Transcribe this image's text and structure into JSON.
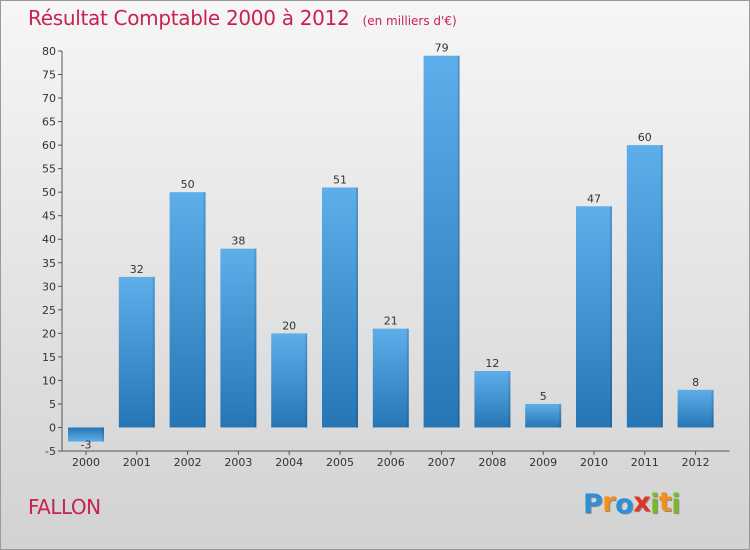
{
  "chart_data": {
    "type": "bar",
    "title": "Résultat Comptable 2000 à 2012",
    "subtitle": "(en milliers d'€)",
    "categories": [
      "2000",
      "2001",
      "2002",
      "2003",
      "2004",
      "2005",
      "2006",
      "2007",
      "2008",
      "2009",
      "2010",
      "2011",
      "2012"
    ],
    "values": [
      -3,
      32,
      50,
      38,
      20,
      51,
      21,
      79,
      12,
      5,
      47,
      60,
      8
    ],
    "value_labels": [
      "-3",
      "32",
      "50",
      "38",
      "20",
      "51",
      "21",
      "79",
      "12",
      "5",
      "47",
      "60",
      "8"
    ],
    "ylim": [
      -5,
      80
    ],
    "yticks": [
      -5,
      0,
      5,
      10,
      15,
      20,
      25,
      30,
      35,
      40,
      45,
      50,
      55,
      60,
      65,
      70,
      75,
      80
    ],
    "xlabel": "",
    "ylabel": "",
    "grid": false,
    "legend": "none",
    "bar_color_light": "#5eaeea",
    "bar_color_dark": "#2676b6"
  },
  "commune": "FALLON",
  "logo": {
    "letters": [
      "P",
      "r",
      "o",
      "x",
      "i",
      "t",
      "i"
    ],
    "colors": [
      "#2d8fd6",
      "#f3901c",
      "#2d8fd6",
      "#e33323",
      "#7cb928",
      "#f3901c",
      "#7cb928"
    ]
  },
  "colors": {
    "title": "#c8224f"
  }
}
